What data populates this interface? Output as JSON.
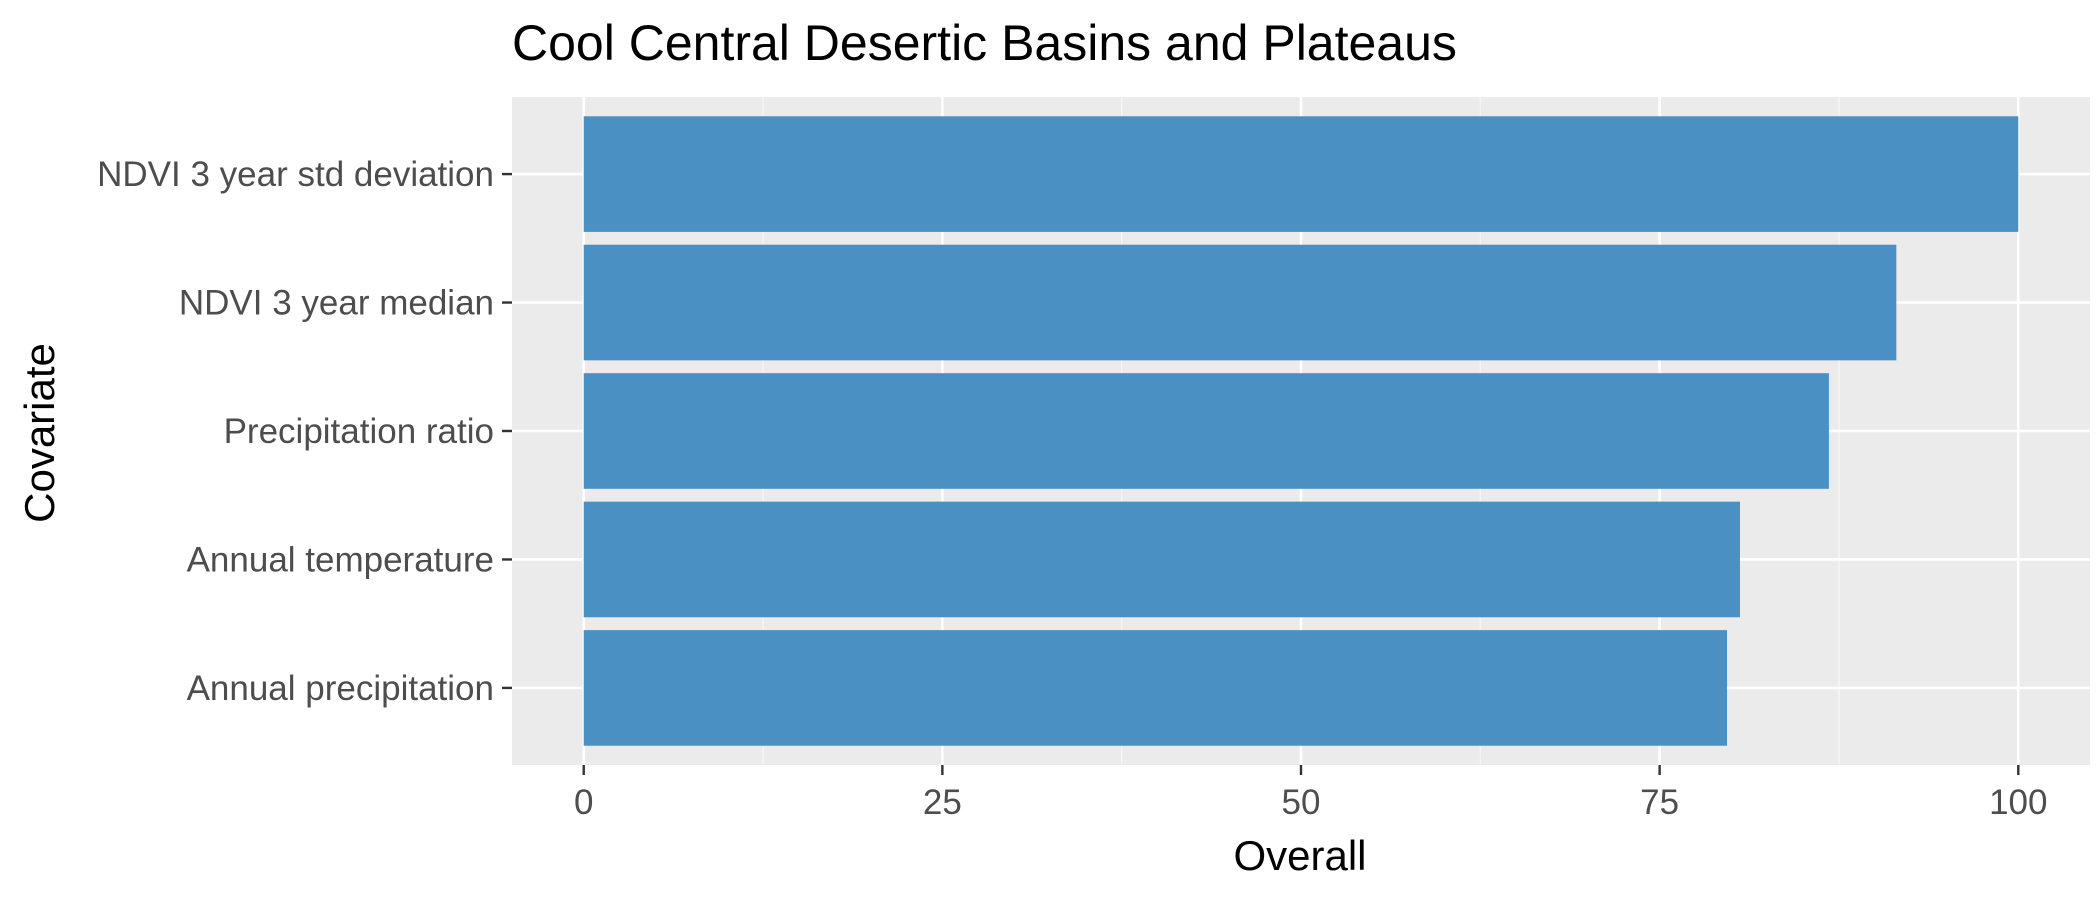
{
  "chart_data": {
    "type": "bar",
    "orientation": "horizontal",
    "title": "Cool Central Desertic Basins and Plateaus",
    "xlabel": "Overall",
    "ylabel": "Covariate",
    "categories": [
      "NDVI 3 year std deviation",
      "NDVI 3 year median",
      "Precipitation ratio",
      "Annual temperature",
      "Annual precipitation"
    ],
    "values": [
      100,
      91.5,
      86.8,
      80.6,
      79.7
    ],
    "xlim": [
      -5,
      105
    ],
    "xticks": [
      0,
      25,
      50,
      75,
      100
    ],
    "xtick_labels": [
      "0",
      "25",
      "50",
      "75",
      "100"
    ],
    "grid": true,
    "legend": "none",
    "colors": {
      "bar": "#4a90c2",
      "panel_background": "#ebebeb",
      "grid_major": "#ffffff",
      "grid_minor": "#f5f5f5",
      "tick_text": "#4d4d4d",
      "tick_mark": "#333333"
    }
  }
}
